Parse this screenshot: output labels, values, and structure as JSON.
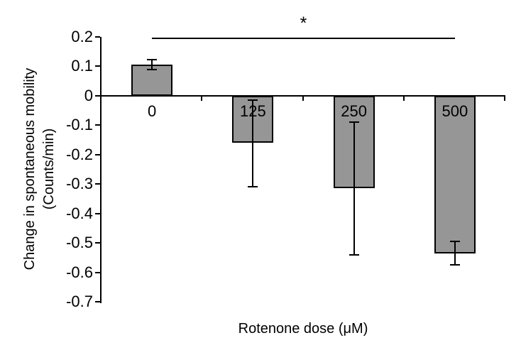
{
  "chart_data": {
    "type": "bar",
    "title": "",
    "categories": [
      "0",
      "125",
      "250",
      "500"
    ],
    "values": [
      0.105,
      -0.16,
      -0.315,
      -0.535
    ],
    "error_bars": [
      {
        "upper": 0.122,
        "lower": 0.088
      },
      {
        "upper": -0.015,
        "lower": -0.31
      },
      {
        "upper": -0.09,
        "lower": -0.54
      },
      {
        "upper": -0.495,
        "lower": -0.575
      }
    ],
    "xlabel": "Rotenone dose (μM)",
    "ylabel_line1": "Change in spontaneous mobility",
    "ylabel_line2": "(Counts/min)",
    "ylim": [
      -0.7,
      0.2
    ],
    "yticks": [
      0.2,
      0.1,
      0,
      -0.1,
      -0.2,
      -0.3,
      -0.4,
      -0.5,
      -0.6,
      -0.7
    ],
    "ytick_labels": [
      "0.2",
      "0.1",
      "0",
      "-0.1",
      "-0.2",
      "-0.3",
      "-0.4",
      "-0.5",
      "-0.6",
      "-0.7"
    ],
    "grid": false,
    "legend": "none",
    "bar_fill": "#969696",
    "bar_border": "#000000",
    "axis_color": "#000000",
    "significance": {
      "label": "*",
      "from_category": 0,
      "to_category": 3
    }
  }
}
